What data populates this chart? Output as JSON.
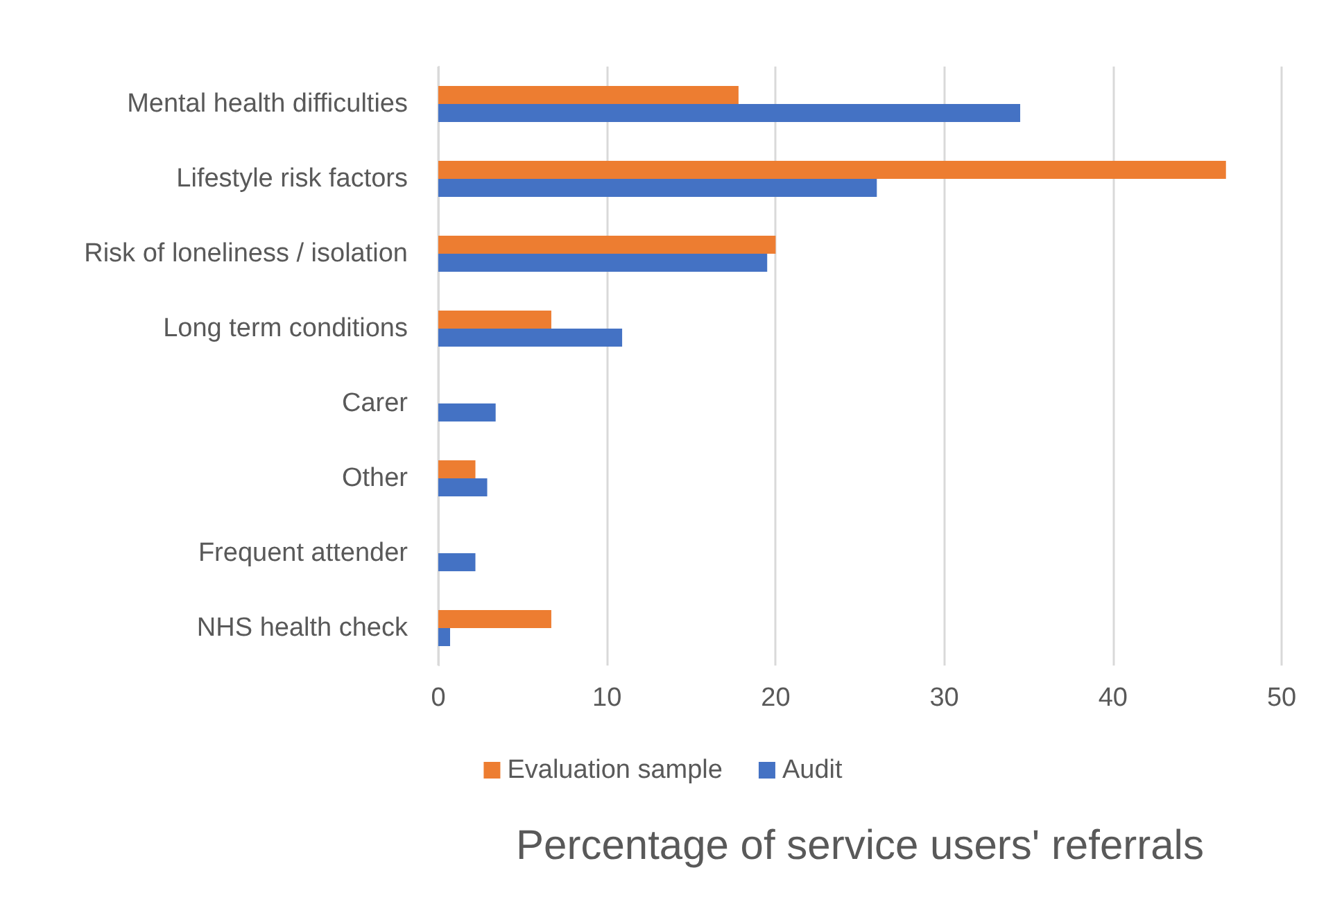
{
  "chart_data": {
    "type": "bar",
    "orientation": "horizontal",
    "xlabel": "Percentage of service users' referrals",
    "categories": [
      "Mental health difficulties",
      "Lifestyle risk factors",
      "Risk of loneliness / isolation",
      "Long term conditions",
      "Carer",
      "Other",
      "Frequent attender",
      "NHS health check"
    ],
    "series": [
      {
        "name": "Evaluation sample",
        "color": "#ed7d31",
        "values": [
          17.8,
          46.7,
          20.0,
          6.7,
          0,
          2.2,
          0,
          6.7
        ]
      },
      {
        "name": "Audit",
        "color": "#4472c4",
        "values": [
          34.5,
          26.0,
          19.5,
          10.9,
          3.4,
          2.9,
          2.2,
          0.7
        ]
      }
    ],
    "xlim": [
      0,
      50
    ],
    "xticks": [
      0,
      10,
      20,
      30,
      40,
      50
    ],
    "grid": "x",
    "legend": "bottom"
  }
}
